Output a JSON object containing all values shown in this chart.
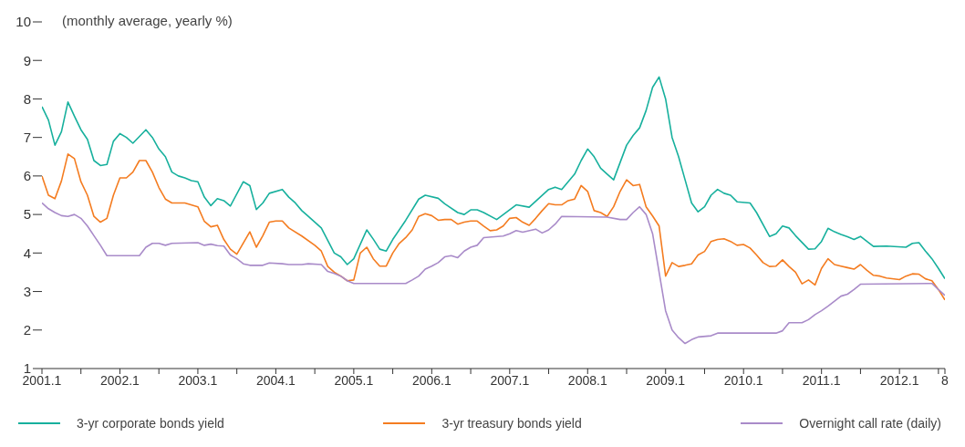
{
  "chart_data": {
    "type": "line",
    "ylabel": "(monthly average, yearly %)",
    "ylim": [
      1,
      10
    ],
    "yticks": [
      1,
      2,
      3,
      4,
      5,
      6,
      7,
      8,
      9,
      10
    ],
    "xlim": [
      "2001-01",
      "2012-08"
    ],
    "xticks": [
      {
        "value": "2001-01",
        "label": "2001.1"
      },
      {
        "value": "2001-07",
        "label": null
      },
      {
        "value": "2002-01",
        "label": "2002.1"
      },
      {
        "value": "2002-07",
        "label": null
      },
      {
        "value": "2003-01",
        "label": "2003.1"
      },
      {
        "value": "2003-07",
        "label": null
      },
      {
        "value": "2004-01",
        "label": "2004.1"
      },
      {
        "value": "2004-07",
        "label": null
      },
      {
        "value": "2005-01",
        "label": "2005.1"
      },
      {
        "value": "2005-07",
        "label": null
      },
      {
        "value": "2006-01",
        "label": "2006.1"
      },
      {
        "value": "2006-07",
        "label": null
      },
      {
        "value": "2007-01",
        "label": "2007.1"
      },
      {
        "value": "2007-07",
        "label": null
      },
      {
        "value": "2008-01",
        "label": "2008.1"
      },
      {
        "value": "2008-07",
        "label": null
      },
      {
        "value": "2009-01",
        "label": "2009.1"
      },
      {
        "value": "2009-07",
        "label": null
      },
      {
        "value": "2010-01",
        "label": "2010.1"
      },
      {
        "value": "2010-07",
        "label": null
      },
      {
        "value": "2011-01",
        "label": "2011.1"
      },
      {
        "value": "2011-07",
        "label": null
      },
      {
        "value": "2012-01",
        "label": "2012.1"
      },
      {
        "value": "2012-07",
        "label": null
      },
      {
        "value": "2012-08",
        "label": "8"
      }
    ],
    "legend": "bottom",
    "marker": "none",
    "series": [
      {
        "name": "3-yr corporate bonds yield",
        "color": "#17b09d",
        "x": [
          "2001-01",
          "2001-02",
          "2001-03",
          "2001-04",
          "2001-05",
          "2001-06",
          "2001-07",
          "2001-08",
          "2001-09",
          "2001-10",
          "2001-11",
          "2001-12",
          "2002-01",
          "2002-02",
          "2002-03",
          "2002-05",
          "2002-06",
          "2002-07",
          "2002-08",
          "2002-09",
          "2002-10",
          "2002-11",
          "2002-12",
          "2003-01",
          "2003-02",
          "2003-03",
          "2003-04",
          "2003-05",
          "2003-06",
          "2003-08",
          "2003-09",
          "2003-10",
          "2003-11",
          "2003-12",
          "2004-02",
          "2004-03",
          "2004-04",
          "2004-05",
          "2004-06",
          "2004-08",
          "2004-10",
          "2004-11",
          "2004-12",
          "2005-01",
          "2005-03",
          "2005-04",
          "2005-05",
          "2005-06",
          "2005-07",
          "2005-09",
          "2005-11",
          "2005-12",
          "2006-02",
          "2006-03",
          "2006-05",
          "2006-06",
          "2006-07",
          "2006-08",
          "2006-09",
          "2006-11",
          "2007-02",
          "2007-04",
          "2007-07",
          "2007-08",
          "2007-09",
          "2007-11",
          "2007-12",
          "2008-01",
          "2008-02",
          "2008-03",
          "2008-04",
          "2008-05",
          "2008-06",
          "2008-07",
          "2008-08",
          "2008-09",
          "2008-10",
          "2008-11",
          "2008-12",
          "2009-01",
          "2009-02",
          "2009-03",
          "2009-04",
          "2009-05",
          "2009-06",
          "2009-07",
          "2009-08",
          "2009-09",
          "2009-10",
          "2009-11",
          "2009-12",
          "2010-02",
          "2010-03",
          "2010-05",
          "2010-06",
          "2010-07",
          "2010-08",
          "2010-09",
          "2010-11",
          "2010-12",
          "2011-01",
          "2011-02",
          "2011-03",
          "2011-04",
          "2011-05",
          "2011-06",
          "2011-07",
          "2011-09",
          "2011-11",
          "2012-02",
          "2012-03",
          "2012-04",
          "2012-05",
          "2012-06",
          "2012-07",
          "2012-08"
        ],
        "values": [
          7.8,
          7.45,
          6.8,
          7.15,
          7.92,
          7.55,
          7.2,
          6.95,
          6.4,
          6.27,
          6.3,
          6.9,
          7.1,
          7.0,
          6.85,
          7.2,
          7.0,
          6.7,
          6.5,
          6.1,
          6.0,
          5.95,
          5.88,
          5.85,
          5.45,
          5.23,
          5.41,
          5.36,
          5.22,
          5.85,
          5.75,
          5.13,
          5.3,
          5.55,
          5.65,
          5.45,
          5.3,
          5.1,
          4.95,
          4.65,
          4.0,
          3.9,
          3.7,
          3.85,
          4.6,
          4.36,
          4.1,
          4.05,
          4.35,
          4.85,
          5.4,
          5.5,
          5.42,
          5.28,
          5.05,
          5.0,
          5.12,
          5.12,
          5.05,
          4.87,
          5.25,
          5.19,
          5.65,
          5.71,
          5.65,
          6.05,
          6.4,
          6.7,
          6.5,
          6.2,
          6.05,
          5.9,
          6.35,
          6.8,
          7.05,
          7.25,
          7.7,
          8.3,
          8.57,
          8.0,
          7.0,
          6.5,
          5.9,
          5.3,
          5.07,
          5.2,
          5.5,
          5.65,
          5.55,
          5.5,
          5.33,
          5.3,
          5.05,
          4.43,
          4.5,
          4.7,
          4.65,
          4.45,
          4.1,
          4.11,
          4.3,
          4.64,
          4.55,
          4.48,
          4.42,
          4.35,
          4.43,
          4.17,
          4.18,
          4.15,
          4.25,
          4.27,
          4.05,
          3.85,
          3.6,
          3.33
        ]
      },
      {
        "name": "3-yr treasury bonds yield",
        "color": "#f47c20",
        "x": [
          "2001-01",
          "2001-02",
          "2001-03",
          "2001-04",
          "2001-05",
          "2001-06",
          "2001-07",
          "2001-08",
          "2001-09",
          "2001-10",
          "2001-11",
          "2001-12",
          "2002-01",
          "2002-02",
          "2002-03",
          "2002-04",
          "2002-05",
          "2002-06",
          "2002-07",
          "2002-08",
          "2002-09",
          "2002-11",
          "2003-01",
          "2003-02",
          "2003-03",
          "2003-04",
          "2003-05",
          "2003-06",
          "2003-07",
          "2003-09",
          "2003-10",
          "2003-11",
          "2003-12",
          "2004-01",
          "2004-02",
          "2004-03",
          "2004-05",
          "2004-07",
          "2004-08",
          "2004-09",
          "2004-10",
          "2004-11",
          "2004-12",
          "2005-01",
          "2005-02",
          "2005-03",
          "2005-04",
          "2005-05",
          "2005-06",
          "2005-07",
          "2005-08",
          "2005-09",
          "2005-10",
          "2005-11",
          "2005-12",
          "2006-01",
          "2006-02",
          "2006-03",
          "2006-04",
          "2006-05",
          "2006-06",
          "2006-07",
          "2006-08",
          "2006-09",
          "2006-10",
          "2006-11",
          "2006-12",
          "2007-01",
          "2007-02",
          "2007-03",
          "2007-04",
          "2007-05",
          "2007-06",
          "2007-07",
          "2007-08",
          "2007-09",
          "2007-10",
          "2007-11",
          "2007-12",
          "2008-01",
          "2008-02",
          "2008-03",
          "2008-04",
          "2008-05",
          "2008-06",
          "2008-07",
          "2008-08",
          "2008-09",
          "2008-10",
          "2008-11",
          "2008-12",
          "2009-01",
          "2009-02",
          "2009-03",
          "2009-04",
          "2009-05",
          "2009-06",
          "2009-07",
          "2009-08",
          "2009-09",
          "2009-10",
          "2009-11",
          "2009-12",
          "2010-01",
          "2010-02",
          "2010-03",
          "2010-04",
          "2010-05",
          "2010-06",
          "2010-07",
          "2010-08",
          "2010-09",
          "2010-10",
          "2010-11",
          "2010-12",
          "2011-01",
          "2011-02",
          "2011-03",
          "2011-04",
          "2011-05",
          "2011-06",
          "2011-07",
          "2011-08",
          "2011-09",
          "2011-10",
          "2011-11",
          "2012-01",
          "2012-02",
          "2012-03",
          "2012-04",
          "2012-05",
          "2012-06",
          "2012-07",
          "2012-08"
        ],
        "values": [
          6.0,
          5.5,
          5.41,
          5.87,
          6.57,
          6.45,
          5.85,
          5.5,
          4.95,
          4.8,
          4.9,
          5.5,
          5.95,
          5.95,
          6.1,
          6.4,
          6.4,
          6.1,
          5.7,
          5.4,
          5.3,
          5.3,
          5.2,
          4.82,
          4.68,
          4.72,
          4.35,
          4.1,
          3.97,
          4.55,
          4.15,
          4.45,
          4.8,
          4.83,
          4.83,
          4.65,
          4.44,
          4.2,
          4.05,
          3.65,
          3.5,
          3.4,
          3.28,
          3.3,
          4.0,
          4.15,
          3.85,
          3.66,
          3.66,
          4.0,
          4.25,
          4.4,
          4.6,
          4.95,
          5.02,
          4.97,
          4.85,
          4.87,
          4.87,
          4.75,
          4.8,
          4.83,
          4.83,
          4.7,
          4.58,
          4.6,
          4.7,
          4.9,
          4.92,
          4.8,
          4.72,
          4.9,
          5.1,
          5.28,
          5.25,
          5.25,
          5.36,
          5.4,
          5.75,
          5.6,
          5.1,
          5.05,
          4.95,
          5.2,
          5.6,
          5.9,
          5.75,
          5.78,
          5.2,
          4.96,
          4.7,
          3.4,
          3.75,
          3.65,
          3.68,
          3.72,
          3.95,
          4.04,
          4.3,
          4.35,
          4.37,
          4.3,
          4.2,
          4.22,
          4.13,
          3.95,
          3.75,
          3.65,
          3.66,
          3.82,
          3.65,
          3.5,
          3.2,
          3.3,
          3.17,
          3.6,
          3.85,
          3.7,
          3.66,
          3.62,
          3.58,
          3.7,
          3.55,
          3.42,
          3.4,
          3.35,
          3.31,
          3.4,
          3.46,
          3.45,
          3.33,
          3.28,
          3.05,
          2.78
        ]
      },
      {
        "name": "Overnight call rate (daily)",
        "color": "#a98bc9",
        "x": [
          "2001-01",
          "2001-02",
          "2001-03",
          "2001-04",
          "2001-05",
          "2001-06",
          "2001-07",
          "2001-08",
          "2001-09",
          "2001-10",
          "2001-11",
          "2002-04",
          "2002-05",
          "2002-06",
          "2002-07",
          "2002-08",
          "2002-09",
          "2003-01",
          "2003-02",
          "2003-03",
          "2003-04",
          "2003-05",
          "2003-06",
          "2003-07",
          "2003-08",
          "2003-09",
          "2003-11",
          "2003-12",
          "2004-02",
          "2004-03",
          "2004-05",
          "2004-06",
          "2004-08",
          "2004-09",
          "2004-10",
          "2004-11",
          "2004-12",
          "2005-01",
          "2005-09",
          "2005-10",
          "2005-11",
          "2005-12",
          "2006-01",
          "2006-02",
          "2006-03",
          "2006-04",
          "2006-05",
          "2006-06",
          "2006-07",
          "2006-08",
          "2006-09",
          "2006-12",
          "2007-01",
          "2007-02",
          "2007-03",
          "2007-05",
          "2007-06",
          "2007-07",
          "2007-08",
          "2007-09",
          "2008-04",
          "2008-06",
          "2008-07",
          "2008-08",
          "2008-09",
          "2008-10",
          "2008-11",
          "2008-12",
          "2009-01",
          "2009-02",
          "2009-03",
          "2009-04",
          "2009-05",
          "2009-06",
          "2009-08",
          "2009-09",
          "2010-06",
          "2010-07",
          "2010-08",
          "2010-10",
          "2010-11",
          "2010-12",
          "2011-01",
          "2011-02",
          "2011-03",
          "2011-04",
          "2011-05",
          "2011-06",
          "2011-07",
          "2012-06",
          "2012-07",
          "2012-08"
        ],
        "values": [
          5.3,
          5.15,
          5.05,
          4.97,
          4.95,
          5.0,
          4.9,
          4.7,
          4.45,
          4.2,
          3.93,
          3.93,
          4.15,
          4.25,
          4.25,
          4.2,
          4.25,
          4.27,
          4.2,
          4.23,
          4.19,
          4.18,
          3.95,
          3.85,
          3.72,
          3.68,
          3.68,
          3.74,
          3.72,
          3.7,
          3.7,
          3.72,
          3.7,
          3.52,
          3.47,
          3.4,
          3.28,
          3.21,
          3.21,
          3.3,
          3.4,
          3.58,
          3.66,
          3.75,
          3.9,
          3.93,
          3.88,
          4.05,
          4.15,
          4.2,
          4.4,
          4.44,
          4.5,
          4.58,
          4.54,
          4.62,
          4.52,
          4.6,
          4.75,
          4.95,
          4.93,
          4.87,
          4.87,
          5.05,
          5.2,
          5.0,
          4.5,
          3.5,
          2.5,
          2.0,
          1.8,
          1.65,
          1.75,
          1.82,
          1.85,
          1.92,
          1.92,
          1.98,
          2.19,
          2.19,
          2.27,
          2.4,
          2.5,
          2.62,
          2.75,
          2.88,
          2.93,
          3.05,
          3.19,
          3.21,
          3.05,
          2.9
        ]
      }
    ]
  }
}
